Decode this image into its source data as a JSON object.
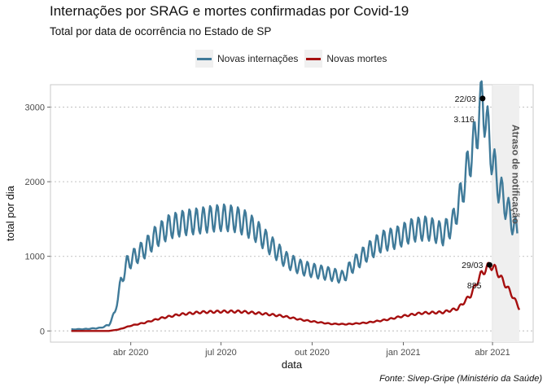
{
  "title": "Internações por SRAG e mortes confirmadas por Covid-19",
  "subtitle": "Total por data de ocorrência no Estado de SP",
  "caption": "Fonte: Sivep-Gripe (Ministério da Saúde)",
  "colors": {
    "internacoes": "#3f7a99",
    "mortes": "#a60f0f",
    "band": "#efefef"
  },
  "chart_data": {
    "type": "line",
    "xlabel": "data",
    "ylabel": "total por dia",
    "x_range": [
      "2020-01-11",
      "2021-05-12"
    ],
    "ylim": [
      -150,
      3300
    ],
    "yticks": [
      0,
      1000,
      2000,
      3000
    ],
    "xticks": [
      {
        "date": "2020-04-01",
        "label": "abr 2020"
      },
      {
        "date": "2020-07-01",
        "label": "jul 2020"
      },
      {
        "date": "2020-10-01",
        "label": "out 2020"
      },
      {
        "date": "2021-01-01",
        "label": "jan 2021"
      },
      {
        "date": "2021-04-01",
        "label": "abr 2021"
      }
    ],
    "grid": true,
    "legend_position": "top",
    "shaded_region": {
      "start": "2021-04-01",
      "end": "2021-04-28",
      "label": "Atraso de notificação"
    },
    "series": [
      {
        "name": "Novas internações",
        "color_key": "internacoes",
        "points": [
          [
            "2020-02-01",
            20
          ],
          [
            "2020-02-15",
            25
          ],
          [
            "2020-03-01",
            40
          ],
          [
            "2020-03-10",
            80
          ],
          [
            "2020-03-16",
            250
          ],
          [
            "2020-03-22",
            650
          ],
          [
            "2020-03-28",
            900
          ],
          [
            "2020-04-05",
            1000
          ],
          [
            "2020-04-15",
            1100
          ],
          [
            "2020-04-25",
            1250
          ],
          [
            "2020-05-10",
            1400
          ],
          [
            "2020-05-25",
            1450
          ],
          [
            "2020-06-10",
            1480
          ],
          [
            "2020-06-25",
            1510
          ],
          [
            "2020-07-05",
            1520
          ],
          [
            "2020-07-15",
            1500
          ],
          [
            "2020-07-25",
            1450
          ],
          [
            "2020-08-05",
            1350
          ],
          [
            "2020-08-20",
            1150
          ],
          [
            "2020-09-05",
            950
          ],
          [
            "2020-09-20",
            850
          ],
          [
            "2020-10-05",
            800
          ],
          [
            "2020-10-20",
            760
          ],
          [
            "2020-11-01",
            720
          ],
          [
            "2020-11-10",
            870
          ],
          [
            "2020-11-25",
            1050
          ],
          [
            "2020-12-10",
            1200
          ],
          [
            "2020-12-25",
            1250
          ],
          [
            "2021-01-10",
            1350
          ],
          [
            "2021-01-25",
            1380
          ],
          [
            "2021-02-10",
            1300
          ],
          [
            "2021-02-20",
            1450
          ],
          [
            "2021-03-01",
            1850
          ],
          [
            "2021-03-08",
            2250
          ],
          [
            "2021-03-14",
            2550
          ],
          [
            "2021-03-18",
            2850
          ],
          [
            "2021-03-22",
            3116
          ],
          [
            "2021-03-27",
            2700
          ],
          [
            "2021-04-01",
            2300
          ],
          [
            "2021-04-07",
            1950
          ],
          [
            "2021-04-14",
            1700
          ],
          [
            "2021-04-20",
            1500
          ],
          [
            "2021-04-26",
            1300
          ]
        ]
      },
      {
        "name": "Novas mortes",
        "color_key": "mortes",
        "points": [
          [
            "2020-02-01",
            0
          ],
          [
            "2020-03-10",
            0
          ],
          [
            "2020-03-20",
            20
          ],
          [
            "2020-04-01",
            70
          ],
          [
            "2020-04-15",
            110
          ],
          [
            "2020-05-01",
            170
          ],
          [
            "2020-05-20",
            220
          ],
          [
            "2020-06-10",
            250
          ],
          [
            "2020-07-01",
            260
          ],
          [
            "2020-07-20",
            260
          ],
          [
            "2020-08-10",
            235
          ],
          [
            "2020-09-01",
            200
          ],
          [
            "2020-09-20",
            150
          ],
          [
            "2020-10-05",
            120
          ],
          [
            "2020-10-20",
            95
          ],
          [
            "2020-11-05",
            90
          ],
          [
            "2020-11-25",
            110
          ],
          [
            "2020-12-15",
            150
          ],
          [
            "2021-01-01",
            200
          ],
          [
            "2021-01-20",
            240
          ],
          [
            "2021-02-10",
            250
          ],
          [
            "2021-02-25",
            300
          ],
          [
            "2021-03-10",
            480
          ],
          [
            "2021-03-20",
            750
          ],
          [
            "2021-03-29",
            885
          ],
          [
            "2021-04-04",
            830
          ],
          [
            "2021-04-10",
            700
          ],
          [
            "2021-04-17",
            560
          ],
          [
            "2021-04-23",
            430
          ],
          [
            "2021-04-28",
            300
          ]
        ]
      }
    ],
    "annotations": [
      {
        "series": "Novas internações",
        "date": "2021-03-22",
        "value": 3116,
        "date_label": "22/03",
        "value_label": "3.116"
      },
      {
        "series": "Novas mortes",
        "date": "2021-03-29",
        "value": 885,
        "date_label": "29/03",
        "value_label": "885"
      }
    ]
  }
}
